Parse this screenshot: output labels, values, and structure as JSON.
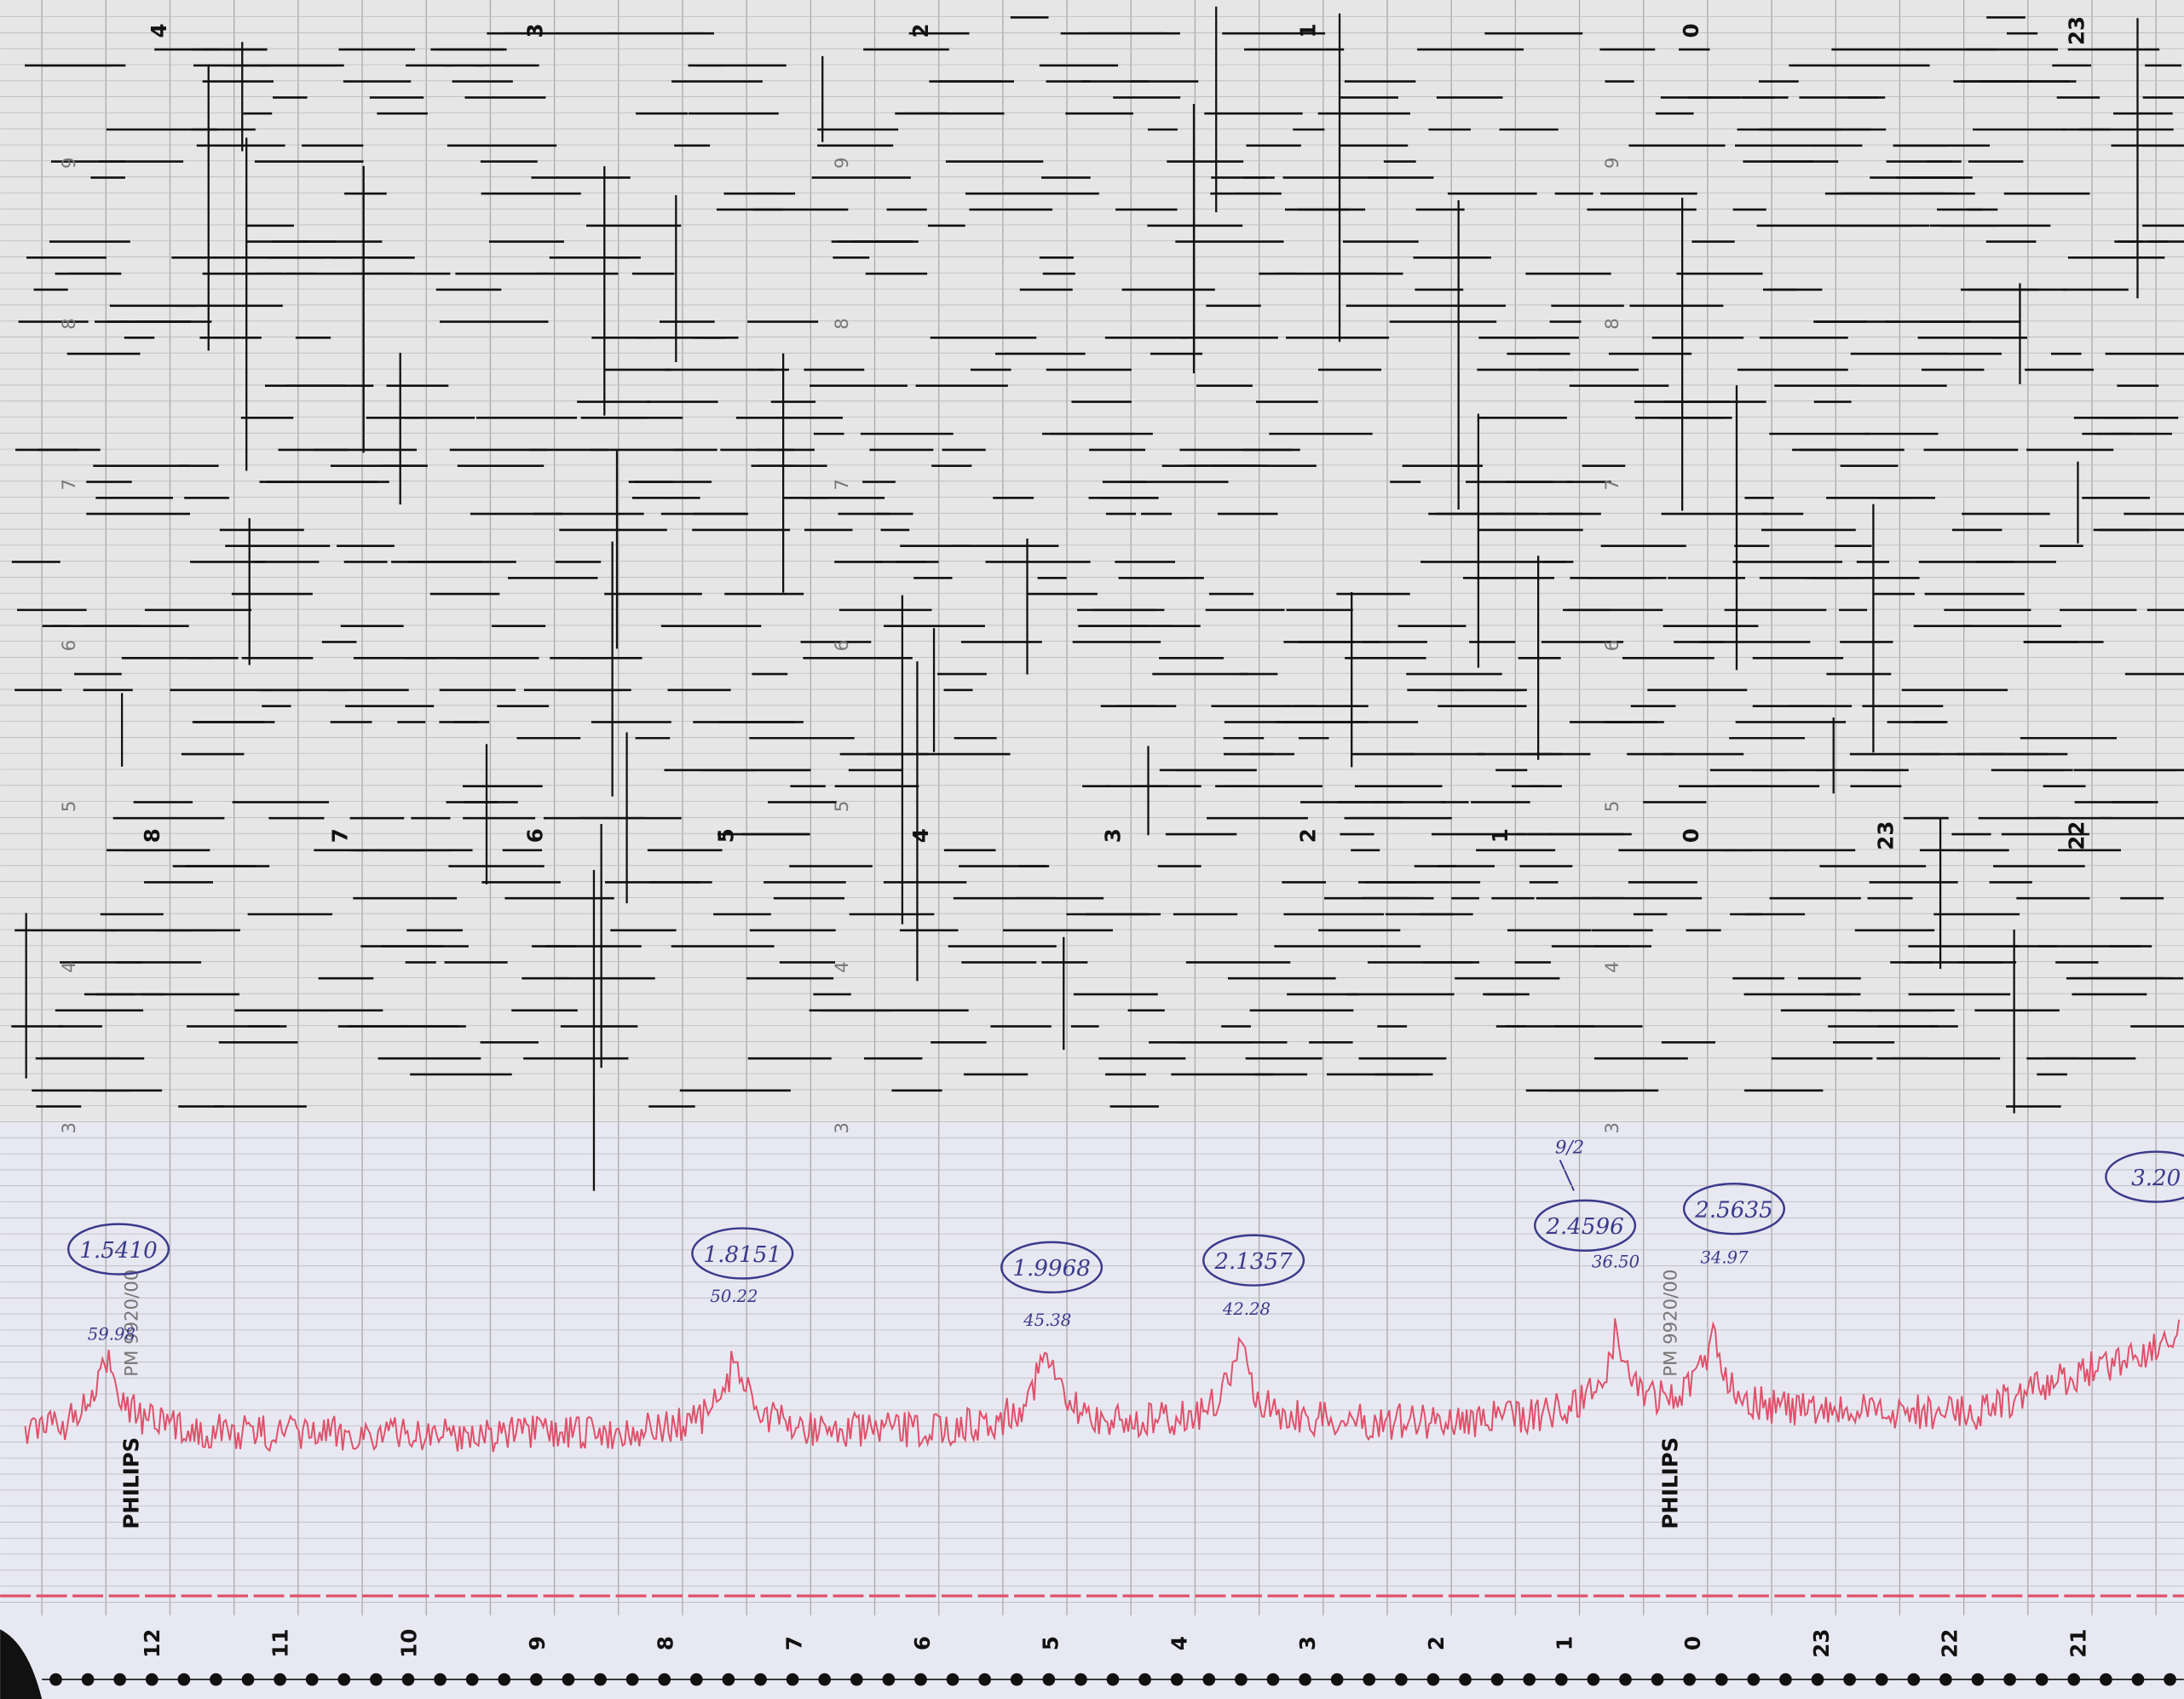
{
  "paper": {
    "brand": "PHILIPS",
    "model": "PM 9920/00"
  },
  "hours_top": [
    "4",
    "3",
    "2",
    "1",
    "0",
    "23"
  ],
  "hours_middle": [
    "8",
    "7",
    "6",
    "5",
    "4",
    "3",
    "2",
    "1",
    "0",
    "23",
    "22"
  ],
  "hours_bottom": [
    "12",
    "11",
    "10",
    "9",
    "8",
    "7",
    "6",
    "5",
    "4",
    "3",
    "2",
    "1",
    "0",
    "23",
    "22",
    "21"
  ],
  "scale": [
    "9",
    "8",
    "7",
    "6",
    "5",
    "4",
    "3"
  ],
  "note": "9/2",
  "annotations": [
    {
      "label": "1.5410",
      "value": "59.98"
    },
    {
      "label": "1.8151",
      "value": "50.22"
    },
    {
      "label": "1.9968",
      "value": "45.38"
    },
    {
      "label": "2.1357",
      "value": "42.28"
    },
    {
      "label": "2.4596",
      "value": "36.50"
    },
    {
      "label": "2.5635",
      "value": "34.97"
    },
    {
      "label": "3.20"
    }
  ]
}
